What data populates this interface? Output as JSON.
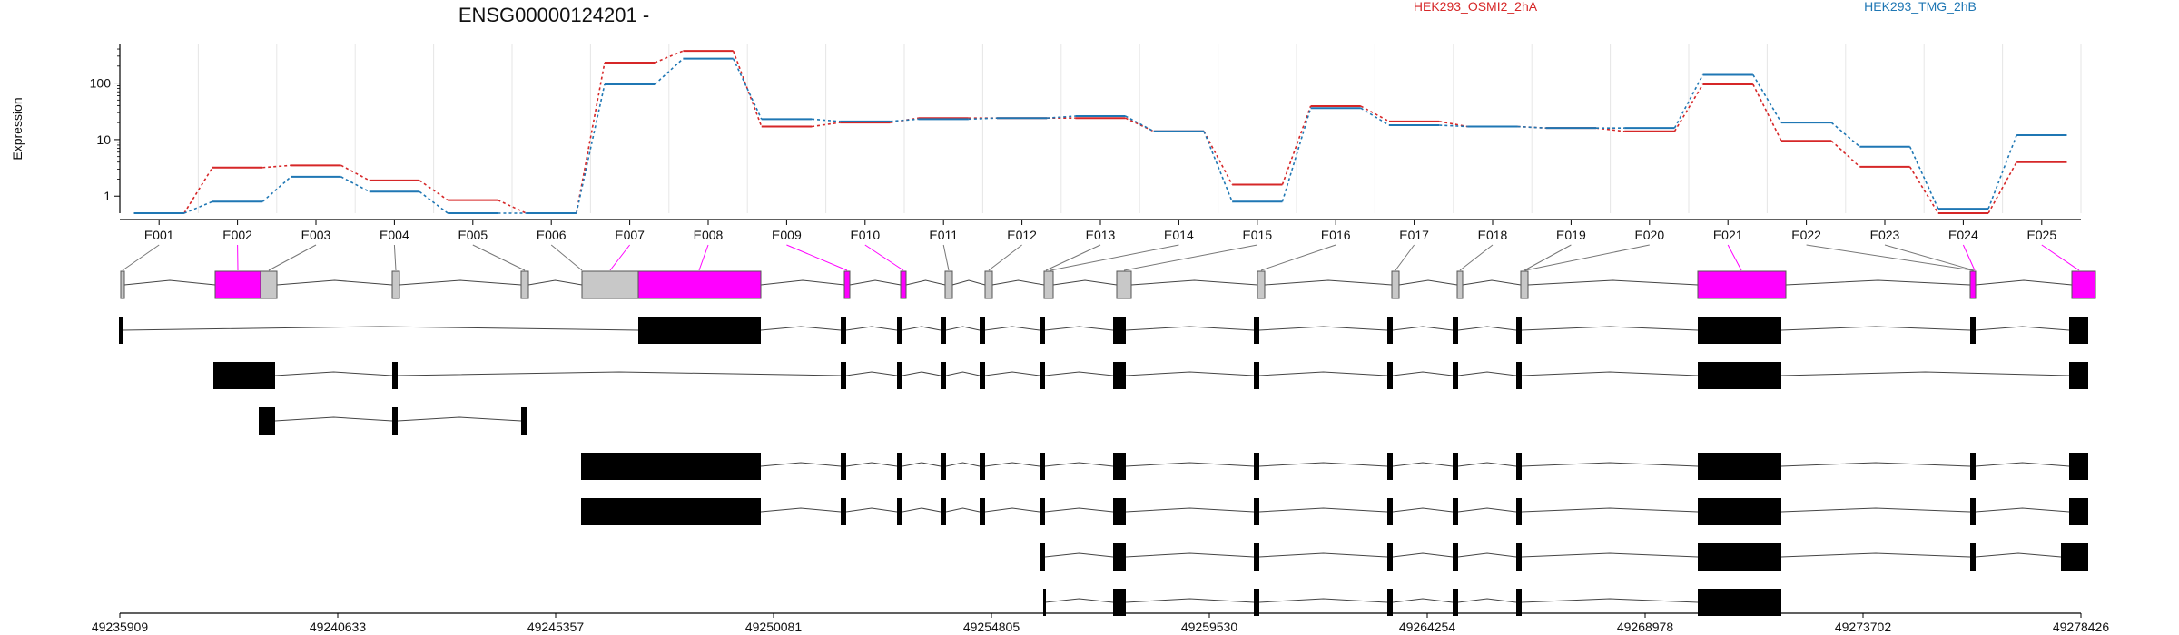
{
  "title": "ENSG00000124201 -",
  "legend": {
    "entries": [
      {
        "name": "HEK293_OSMI2_2hA",
        "color": "#d62728"
      },
      {
        "name": "HEK293_TMG_2hB",
        "color": "#1f77b4"
      }
    ]
  },
  "colors": {
    "significant_exon": "#ff00ff",
    "plain_exon": "#c8c8c8",
    "transcript_exon": "#000000",
    "grid": "#e6e6e6"
  },
  "chart_data": {
    "type": "line",
    "ylabel": "Expression",
    "yscale": "log",
    "yticks": [
      1,
      10,
      100
    ],
    "ylim": [
      0.5,
      500
    ],
    "categories": [
      "E001",
      "E002",
      "E003",
      "E004",
      "E005",
      "E006",
      "E007",
      "E008",
      "E009",
      "E010",
      "E011",
      "E012",
      "E013",
      "E014",
      "E015",
      "E016",
      "E017",
      "E018",
      "E019",
      "E020",
      "E021",
      "E022",
      "E023",
      "E024",
      "E025"
    ],
    "series": [
      {
        "name": "HEK293_OSMI2_2hA",
        "color": "#d62728",
        "values": [
          0.5,
          3.2,
          3.5,
          1.9,
          0.85,
          0.5,
          230,
          370,
          17,
          20,
          24,
          24,
          24,
          14,
          1.6,
          39,
          21,
          17,
          16,
          14,
          95,
          9.5,
          3.3,
          0.5,
          4
        ]
      },
      {
        "name": "HEK293_TMG_2hB",
        "color": "#1f77b4",
        "values": [
          0.5,
          0.8,
          2.2,
          1.2,
          0.5,
          0.5,
          95,
          270,
          23,
          21,
          23,
          24,
          26,
          14,
          0.8,
          36,
          18,
          17,
          16,
          16,
          140,
          20,
          7.5,
          0.6,
          12
        ]
      }
    ],
    "exon_significant": [
      false,
      true,
      false,
      false,
      false,
      false,
      true,
      true,
      true,
      true,
      false,
      false,
      false,
      false,
      false,
      false,
      false,
      false,
      false,
      false,
      true,
      false,
      false,
      true,
      true
    ],
    "genomic_axis_labels": [
      "49235909",
      "49240633",
      "49245357",
      "49250081",
      "49254805",
      "49259530",
      "49264254",
      "49268978",
      "49273702",
      "49278426"
    ],
    "genomic_range": [
      49235909,
      49278426
    ]
  }
}
